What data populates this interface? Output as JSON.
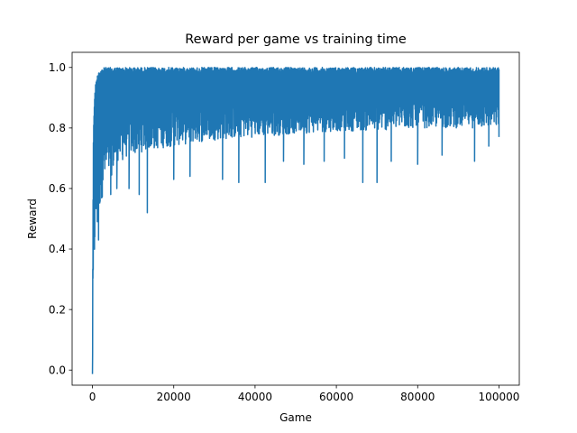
{
  "chart_data": {
    "type": "line",
    "title": "Reward per game vs training time",
    "xlabel": "Game",
    "ylabel": "Reward",
    "xlim": [
      -5000,
      105000
    ],
    "ylim": [
      -0.05,
      1.05
    ],
    "x_ticks": [
      0,
      20000,
      40000,
      60000,
      80000,
      100000
    ],
    "x_tick_labels": [
      "0",
      "20000",
      "40000",
      "60000",
      "80000",
      "100000"
    ],
    "y_ticks": [
      0.0,
      0.2,
      0.4,
      0.6,
      0.8,
      1.0
    ],
    "y_tick_labels": [
      "0.0",
      "0.2",
      "0.4",
      "0.6",
      "0.8",
      "1.0"
    ],
    "grid": false,
    "legend": "none",
    "series": [
      {
        "color": "#1f77b4",
        "x_start": 0,
        "x_end": 100000,
        "upper_envelope": [
          [
            0,
            0.0
          ],
          [
            100,
            0.45
          ],
          [
            250,
            0.8
          ],
          [
            500,
            0.9
          ],
          [
            800,
            0.95
          ],
          [
            1500,
            0.99
          ],
          [
            3000,
            1.0
          ],
          [
            100000,
            1.0
          ]
        ],
        "lower_envelope": [
          [
            0,
            0.0
          ],
          [
            200,
            0.14
          ],
          [
            400,
            0.3
          ],
          [
            700,
            0.42
          ],
          [
            1200,
            0.44
          ],
          [
            2000,
            0.55
          ],
          [
            3000,
            0.6
          ],
          [
            5000,
            0.65
          ],
          [
            8000,
            0.7
          ],
          [
            12000,
            0.72
          ],
          [
            20000,
            0.74
          ],
          [
            30000,
            0.76
          ],
          [
            40000,
            0.77
          ],
          [
            50000,
            0.78
          ],
          [
            60000,
            0.79
          ],
          [
            70000,
            0.79
          ],
          [
            80000,
            0.8
          ],
          [
            90000,
            0.8
          ],
          [
            100000,
            0.8
          ]
        ],
        "notable_minima": [
          [
            1500,
            0.43
          ],
          [
            4500,
            0.58
          ],
          [
            6000,
            0.6
          ],
          [
            9000,
            0.6
          ],
          [
            11500,
            0.58
          ],
          [
            13500,
            0.52
          ],
          [
            20000,
            0.63
          ],
          [
            24000,
            0.64
          ],
          [
            32000,
            0.63
          ],
          [
            36000,
            0.62
          ],
          [
            42500,
            0.62
          ],
          [
            47000,
            0.69
          ],
          [
            52000,
            0.68
          ],
          [
            57000,
            0.69
          ],
          [
            62000,
            0.7
          ],
          [
            66500,
            0.62
          ],
          [
            70000,
            0.62
          ],
          [
            73500,
            0.69
          ],
          [
            80000,
            0.68
          ],
          [
            86000,
            0.71
          ],
          [
            94000,
            0.69
          ],
          [
            97500,
            0.74
          ],
          [
            100000,
            0.77
          ]
        ]
      }
    ]
  }
}
